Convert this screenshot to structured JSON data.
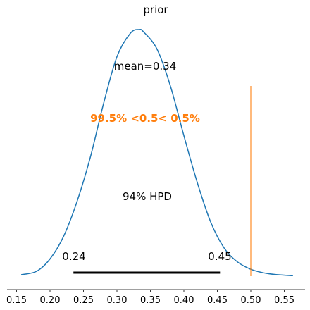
{
  "chart_data": {
    "type": "line",
    "title": "prior",
    "xlabel": "",
    "ylabel": "",
    "xlim": [
      0.14,
      0.575
    ],
    "ylim": [
      0,
      1.0
    ],
    "x_ticks": [
      0.15,
      0.2,
      0.25,
      0.3,
      0.35,
      0.4,
      0.45,
      0.5,
      0.55
    ],
    "x_tick_labels": [
      "0.15",
      "0.20",
      "0.25",
      "0.30",
      "0.35",
      "0.40",
      "0.45",
      "0.50",
      "0.55"
    ],
    "series": [
      {
        "color": "#1f77b4",
        "x": [
          0.157,
          0.18,
          0.2,
          0.22,
          0.24,
          0.26,
          0.28,
          0.3,
          0.32,
          0.333,
          0.34,
          0.36,
          0.38,
          0.4,
          0.42,
          0.44,
          0.46,
          0.48,
          0.5,
          0.52,
          0.54,
          0.563
        ],
        "y": [
          0.006,
          0.02,
          0.07,
          0.16,
          0.3,
          0.48,
          0.7,
          0.89,
          0.985,
          1.0,
          0.99,
          0.92,
          0.77,
          0.57,
          0.38,
          0.22,
          0.115,
          0.058,
          0.028,
          0.013,
          0.006,
          0.002
        ]
      }
    ],
    "reference_line": {
      "x": 0.5,
      "color": "#ff7f0e"
    },
    "hpd": {
      "low": 0.235,
      "high": 0.454,
      "low_label": "0.24",
      "high_label": "0.45",
      "label": "94% HPD"
    },
    "annotations": {
      "mean": "mean=0.34",
      "ref_prob": "99.5% <0.5< 0.5%"
    }
  }
}
